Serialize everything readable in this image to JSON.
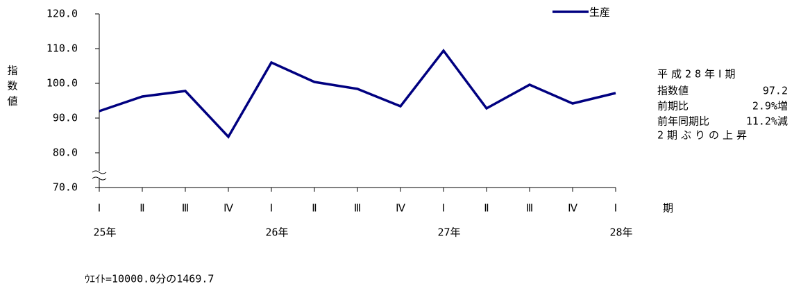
{
  "chart_data": {
    "type": "line",
    "categories": [
      "Ⅰ",
      "Ⅱ",
      "Ⅲ",
      "Ⅳ",
      "Ⅰ",
      "Ⅱ",
      "Ⅲ",
      "Ⅳ",
      "Ⅰ",
      "Ⅱ",
      "Ⅲ",
      "Ⅳ",
      "Ⅰ"
    ],
    "year_labels": [
      "25年",
      null,
      null,
      null,
      "26年",
      null,
      null,
      null,
      "27年",
      null,
      null,
      null,
      "28年"
    ],
    "x_label": "期",
    "y_label": "指数値",
    "series": [
      {
        "name": "生産",
        "color": "#000080",
        "values": [
          92.0,
          96.2,
          97.8,
          84.6,
          106.0,
          100.4,
          98.4,
          93.4,
          109.4,
          92.8,
          99.6,
          94.2,
          97.2
        ]
      }
    ],
    "ylim": [
      70,
      120
    ],
    "yticks": [
      {
        "value": 70,
        "label": "70.0"
      },
      {
        "value": 80,
        "label": "80.0"
      },
      {
        "value": 90,
        "label": "90.0"
      },
      {
        "value": 100,
        "label": "100.0"
      },
      {
        "value": 110,
        "label": "110.0"
      },
      {
        "value": 120,
        "label": "120.0"
      }
    ],
    "grid": false,
    "legend": "top-right",
    "annotation": {
      "heading": "平成28年Ⅰ期",
      "rows": [
        {
          "label": "指数値",
          "value": "97.2"
        },
        {
          "label": "前期比",
          "value": "2.9%増"
        },
        {
          "label": "前年同期比",
          "value": "11.2%減"
        }
      ],
      "footer": "2期ぶりの上昇"
    },
    "footnote": "ｳｴｲﾄ=10000.0分の1469.7"
  }
}
